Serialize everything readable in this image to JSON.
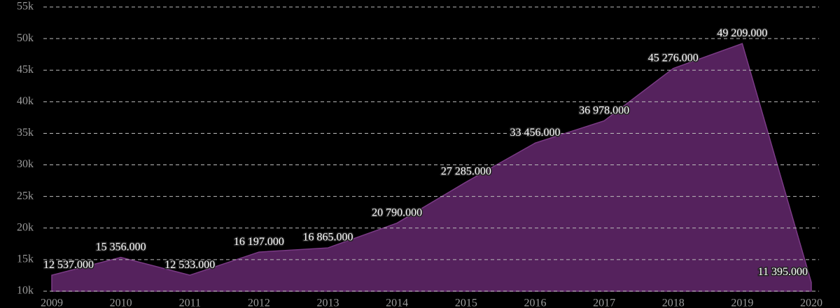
{
  "chart_data": {
    "type": "area",
    "x": [
      2009,
      2010,
      2011,
      2012,
      2013,
      2014,
      2015,
      2016,
      2017,
      2018,
      2019,
      2020
    ],
    "values": [
      12537,
      15356,
      12533,
      16197,
      16865,
      20790,
      27285,
      33456,
      36978,
      45276,
      49209,
      11395
    ],
    "value_labels": [
      "12 537.000",
      "15 356.000",
      "12 533.000",
      "16 197.000",
      "16 865.000",
      "20 790.000",
      "27 285.000",
      "33 456.000",
      "36 978.000",
      "45 276.000",
      "49 209.000",
      "11 395.000"
    ],
    "color": "#5a2462",
    "xlim": [
      2009,
      2020
    ],
    "xticks": [
      2009,
      2010,
      2011,
      2012,
      2013,
      2014,
      2015,
      2016,
      2017,
      2018,
      2019,
      2020
    ],
    "ylim": [
      10000,
      55000
    ],
    "yticks": [
      {
        "value": 10000,
        "label": "10k"
      },
      {
        "value": 15000,
        "label": "15k"
      },
      {
        "value": 20000,
        "label": "20k"
      },
      {
        "value": 25000,
        "label": "25k"
      },
      {
        "value": 30000,
        "label": "30k"
      },
      {
        "value": 35000,
        "label": "35k"
      },
      {
        "value": 40000,
        "label": "40k"
      },
      {
        "value": 45000,
        "label": "45k"
      },
      {
        "value": 50000,
        "label": "50k"
      },
      {
        "value": 55000,
        "label": "55k"
      }
    ],
    "grid": true
  }
}
